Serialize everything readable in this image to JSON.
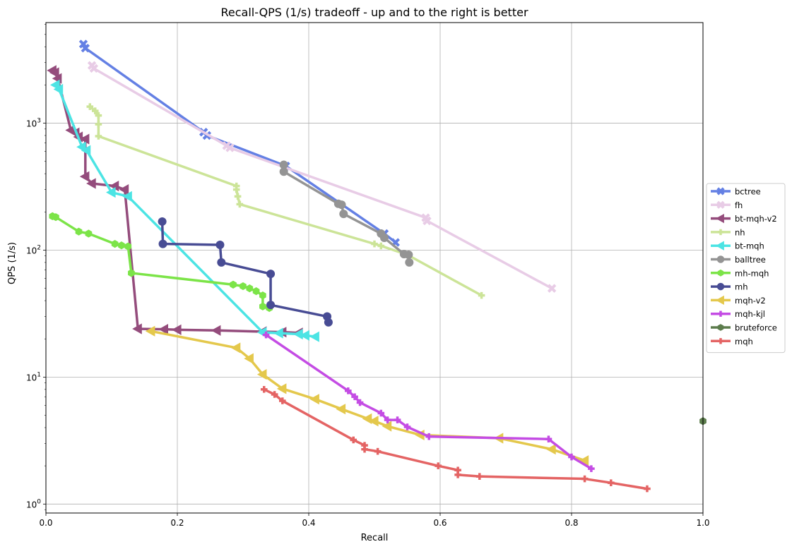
{
  "chart_data": {
    "type": "line",
    "title": "Recall-QPS (1/s) tradeoff - up and to the right is better",
    "xlabel": "Recall",
    "ylabel": "QPS (1/s)",
    "xlim": [
      0.0,
      1.0
    ],
    "ylim": [
      0.85,
      6200
    ],
    "yscale": "log",
    "grid": true,
    "legend_position": "right",
    "x_ticks": [
      {
        "value": 0.0,
        "label": "0.0"
      },
      {
        "value": 0.2,
        "label": "0.2"
      },
      {
        "value": 0.4,
        "label": "0.4"
      },
      {
        "value": 0.6,
        "label": "0.6"
      },
      {
        "value": 0.8,
        "label": "0.8"
      },
      {
        "value": 1.0,
        "label": "1.0"
      }
    ],
    "y_ticks": [
      {
        "value": 1,
        "base": "10",
        "exp": "0"
      },
      {
        "value": 10,
        "base": "10",
        "exp": "1"
      },
      {
        "value": 100,
        "base": "10",
        "exp": "2"
      },
      {
        "value": 1000,
        "base": "10",
        "exp": "3"
      }
    ],
    "series": [
      {
        "name": "bctree",
        "color": "#6480e4",
        "marker": "x",
        "points": [
          [
            0.057,
            4200
          ],
          [
            0.06,
            3900
          ],
          [
            0.24,
            850
          ],
          [
            0.245,
            800
          ],
          [
            0.365,
            460
          ],
          [
            0.515,
            135
          ],
          [
            0.532,
            115
          ]
        ]
      },
      {
        "name": "fh",
        "color": "#e8cce6",
        "marker": "x",
        "points": [
          [
            0.07,
            2850
          ],
          [
            0.073,
            2700
          ],
          [
            0.275,
            665
          ],
          [
            0.28,
            640
          ],
          [
            0.578,
            180
          ],
          [
            0.58,
            170
          ],
          [
            0.77,
            50
          ]
        ]
      },
      {
        "name": "bt-mqh-v2",
        "color": "#944c7c",
        "marker": "triangle-left",
        "points": [
          [
            0.01,
            2600
          ],
          [
            0.014,
            2500
          ],
          [
            0.018,
            2250
          ],
          [
            0.038,
            880
          ],
          [
            0.045,
            840
          ],
          [
            0.05,
            780
          ],
          [
            0.06,
            750
          ],
          [
            0.06,
            380
          ],
          [
            0.07,
            335
          ],
          [
            0.105,
            320
          ],
          [
            0.12,
            300
          ],
          [
            0.14,
            24
          ],
          [
            0.18,
            23.8
          ],
          [
            0.2,
            23.6
          ],
          [
            0.26,
            23.3
          ],
          [
            0.33,
            22.8
          ],
          [
            0.36,
            22.6
          ],
          [
            0.385,
            22.3
          ]
        ]
      },
      {
        "name": "nh",
        "color": "#cce498",
        "marker": "plus",
        "points": [
          [
            0.067,
            1350
          ],
          [
            0.075,
            1250
          ],
          [
            0.08,
            1150
          ],
          [
            0.08,
            980
          ],
          [
            0.08,
            790
          ],
          [
            0.29,
            320
          ],
          [
            0.29,
            300
          ],
          [
            0.292,
            265
          ],
          [
            0.295,
            230
          ],
          [
            0.5,
            112
          ],
          [
            0.51,
            108
          ],
          [
            0.55,
            92
          ],
          [
            0.663,
            44
          ]
        ]
      },
      {
        "name": "bt-mqh",
        "color": "#4ce4e4",
        "marker": "triangle-left",
        "points": [
          [
            0.015,
            2000
          ],
          [
            0.02,
            1850
          ],
          [
            0.055,
            650
          ],
          [
            0.062,
            610
          ],
          [
            0.1,
            285
          ],
          [
            0.125,
            265
          ],
          [
            0.33,
            22.5
          ],
          [
            0.355,
            22.2
          ],
          [
            0.385,
            21.8
          ],
          [
            0.395,
            21.3
          ],
          [
            0.41,
            20.8
          ]
        ]
      },
      {
        "name": "balltree",
        "color": "#949494",
        "marker": "circle",
        "points": [
          [
            0.362,
            470
          ],
          [
            0.362,
            415
          ],
          [
            0.445,
            232
          ],
          [
            0.45,
            228
          ],
          [
            0.453,
            193
          ],
          [
            0.51,
            135
          ],
          [
            0.515,
            125
          ],
          [
            0.545,
            93
          ],
          [
            0.552,
            92
          ],
          [
            0.553,
            80
          ]
        ]
      },
      {
        "name": "mh-mqh",
        "color": "#7ce448",
        "marker": "hexagon",
        "points": [
          [
            0.01,
            185
          ],
          [
            0.015,
            182
          ],
          [
            0.05,
            140
          ],
          [
            0.065,
            135
          ],
          [
            0.105,
            112
          ],
          [
            0.115,
            109
          ],
          [
            0.125,
            107
          ],
          [
            0.13,
            66
          ],
          [
            0.285,
            53.5
          ],
          [
            0.3,
            52
          ],
          [
            0.31,
            50
          ],
          [
            0.32,
            47.5
          ],
          [
            0.33,
            44
          ],
          [
            0.33,
            36
          ],
          [
            0.34,
            35
          ]
        ]
      },
      {
        "name": "mh",
        "color": "#484c94",
        "marker": "circle",
        "points": [
          [
            0.177,
            168
          ],
          [
            0.178,
            112
          ],
          [
            0.265,
            110
          ],
          [
            0.267,
            80
          ],
          [
            0.342,
            65
          ],
          [
            0.342,
            37
          ],
          [
            0.428,
            30
          ],
          [
            0.43,
            27
          ]
        ]
      },
      {
        "name": "mqh-v2",
        "color": "#e4c84c",
        "marker": "triangle-left",
        "points": [
          [
            0.16,
            23
          ],
          [
            0.29,
            17
          ],
          [
            0.31,
            14
          ],
          [
            0.33,
            10.5
          ],
          [
            0.36,
            8.1
          ],
          [
            0.41,
            6.7
          ],
          [
            0.45,
            5.6
          ],
          [
            0.49,
            4.7
          ],
          [
            0.5,
            4.5
          ],
          [
            0.52,
            4.1
          ],
          [
            0.57,
            3.5
          ],
          [
            0.69,
            3.3
          ],
          [
            0.77,
            2.7
          ],
          [
            0.82,
            2.2
          ]
        ]
      },
      {
        "name": "mqh-kjl",
        "color": "#c44ce4",
        "marker": "plus",
        "points": [
          [
            0.335,
            21.5
          ],
          [
            0.46,
            7.8
          ],
          [
            0.47,
            7
          ],
          [
            0.478,
            6.3
          ],
          [
            0.51,
            5.2
          ],
          [
            0.52,
            4.6
          ],
          [
            0.535,
            4.6
          ],
          [
            0.55,
            4.05
          ],
          [
            0.583,
            3.4
          ],
          [
            0.765,
            3.25
          ],
          [
            0.8,
            2.35
          ],
          [
            0.83,
            1.9
          ]
        ]
      },
      {
        "name": "bruteforce",
        "color": "#5c7c4c",
        "marker": "hexagon",
        "points": [
          [
            1.0,
            4.5
          ]
        ]
      },
      {
        "name": "mqh",
        "color": "#e46464",
        "marker": "plus",
        "points": [
          [
            0.332,
            8
          ],
          [
            0.348,
            7.3
          ],
          [
            0.36,
            6.5
          ],
          [
            0.468,
            3.2
          ],
          [
            0.485,
            2.9
          ],
          [
            0.485,
            2.7
          ],
          [
            0.505,
            2.6
          ],
          [
            0.597,
            2
          ],
          [
            0.627,
            1.85
          ],
          [
            0.627,
            1.7
          ],
          [
            0.66,
            1.65
          ],
          [
            0.82,
            1.58
          ],
          [
            0.86,
            1.47
          ],
          [
            0.915,
            1.32
          ]
        ]
      }
    ]
  }
}
